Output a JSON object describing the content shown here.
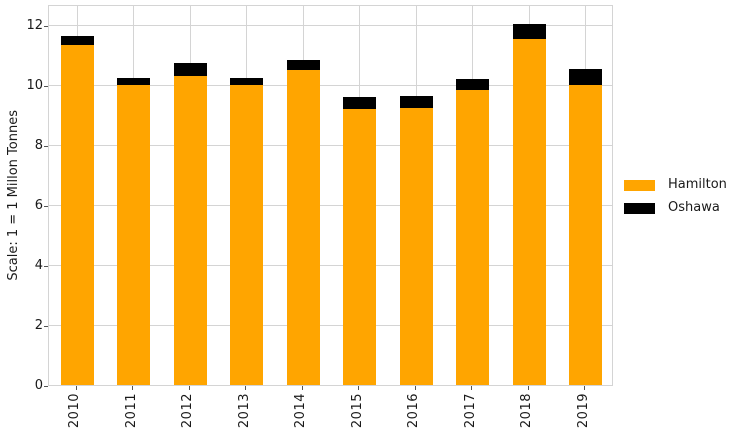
{
  "chart_data": {
    "type": "bar",
    "stacked": true,
    "title": "",
    "xlabel": "",
    "ylabel": "Scale: 1 = 1 Millon Tonnes",
    "categories": [
      "2010",
      "2011",
      "2012",
      "2013",
      "2014",
      "2015",
      "2016",
      "2017",
      "2018",
      "2019"
    ],
    "series": [
      {
        "name": "Hamilton",
        "color": "#FFA500",
        "values": [
          11.35,
          10.0,
          10.3,
          10.0,
          10.5,
          9.2,
          9.25,
          9.85,
          11.55,
          10.0
        ]
      },
      {
        "name": "Oshawa",
        "color": "#000000",
        "values": [
          0.3,
          0.25,
          0.45,
          0.25,
          0.35,
          0.4,
          0.4,
          0.35,
          0.5,
          0.55
        ]
      }
    ],
    "yticks": [
      0,
      2,
      4,
      6,
      8,
      10,
      12
    ],
    "ylim": [
      0,
      12.7
    ],
    "grid": true,
    "grid_color": "#d4d4d4",
    "text_color": "#1a1a1a",
    "background_color": "#ffffff",
    "legend_position": "center-right",
    "legend_entries": [
      "Hamilton",
      "Oshawa"
    ]
  }
}
